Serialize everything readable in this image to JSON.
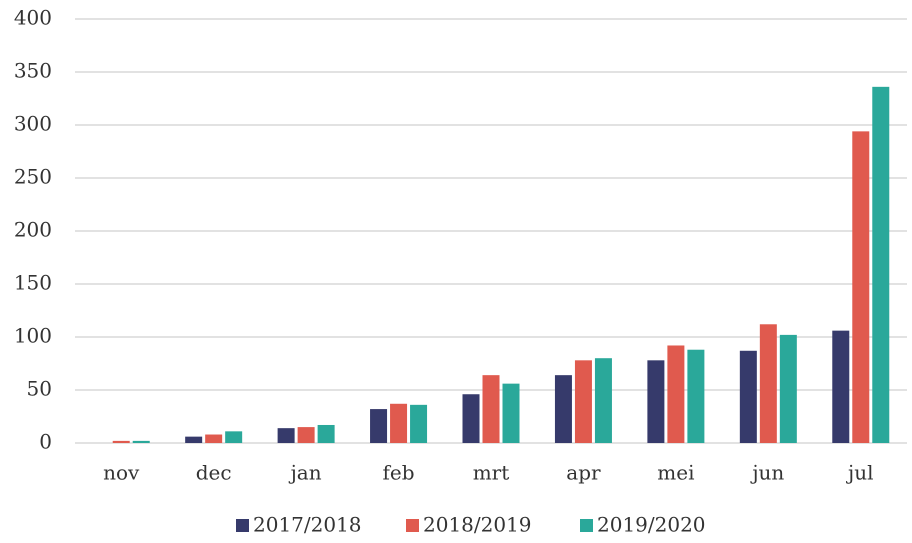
{
  "chart_data": {
    "type": "bar",
    "categories": [
      "nov",
      "dec",
      "jan",
      "feb",
      "mrt",
      "apr",
      "mei",
      "jun",
      "jul"
    ],
    "series": [
      {
        "name": "2017/2018",
        "color": "#363a6b",
        "values": [
          0,
          6,
          14,
          32,
          46,
          64,
          78,
          87,
          106
        ]
      },
      {
        "name": "2018/2019",
        "color": "#e05a4e",
        "values": [
          2,
          8,
          15,
          37,
          64,
          78,
          92,
          112,
          294
        ]
      },
      {
        "name": "2019/2020",
        "color": "#2aa89a",
        "values": [
          2,
          11,
          17,
          36,
          56,
          80,
          88,
          102,
          336
        ]
      }
    ],
    "ylim": [
      0,
      400
    ],
    "yticks": [
      0,
      50,
      100,
      150,
      200,
      250,
      300,
      350,
      400
    ],
    "grid": true,
    "legend": "bottom"
  }
}
